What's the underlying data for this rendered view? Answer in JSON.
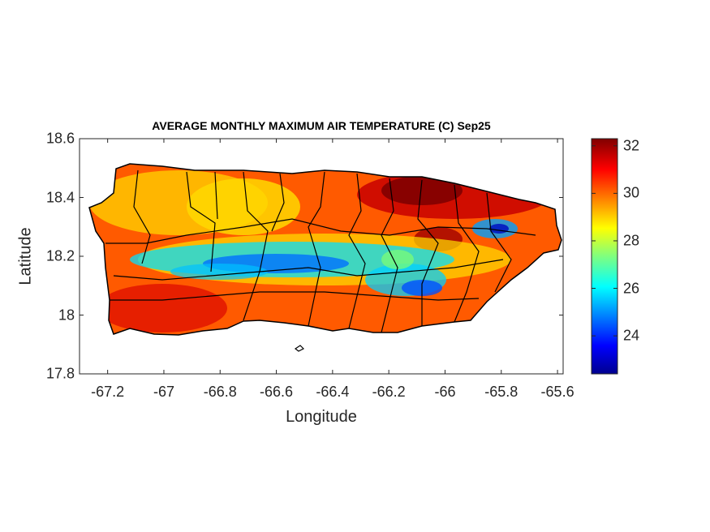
{
  "map": {
    "title": "AVERAGE MONTHLY MAXIMUM AIR TEMPERATURE (C) Sep25",
    "xlabel": "Longitude",
    "ylabel": "Latitude",
    "xlim": [
      -67.3,
      -65.58
    ],
    "ylim": [
      17.8,
      18.6
    ],
    "x_ticks": [
      "-67.2",
      "-67",
      "-66.8",
      "-66.6",
      "-66.4",
      "-66.2",
      "-66",
      "-65.8",
      "-65.6"
    ],
    "x_tick_values": [
      -67.2,
      -67.0,
      -66.8,
      -66.6,
      -66.4,
      -66.2,
      -66.0,
      -65.8,
      -65.6
    ],
    "y_ticks": [
      "18.6",
      "18.4",
      "18.2",
      "18",
      "17.8"
    ],
    "y_tick_values": [
      18.6,
      18.4,
      18.2,
      18.0,
      17.8
    ],
    "colorbar": {
      "colormap": "jet",
      "range": [
        22.4,
        32.3
      ],
      "ticks": [
        "32",
        "30",
        "28",
        "26",
        "24"
      ],
      "tick_values": [
        32,
        30,
        28,
        26,
        24
      ]
    },
    "region": "Puerto Rico",
    "colors": {
      "coast_outline": "#000000",
      "axis": "#262626"
    }
  }
}
